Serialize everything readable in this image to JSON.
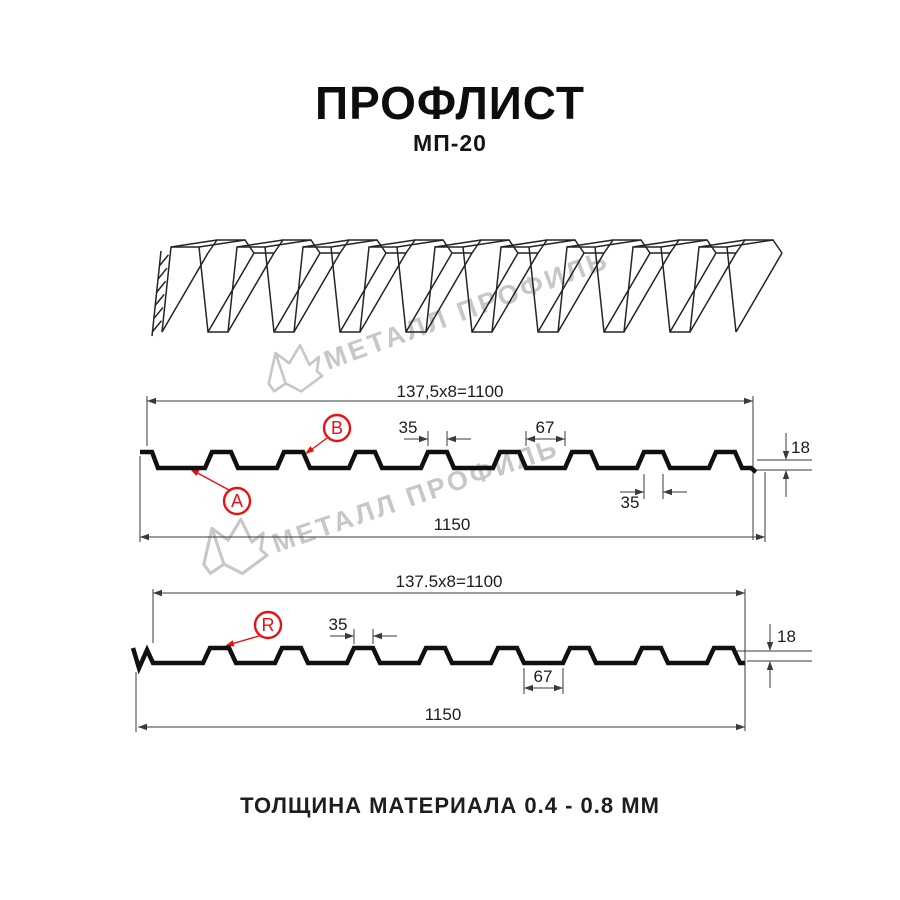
{
  "page": {
    "title": "ПРОФЛИСТ",
    "subtitle": "МП-20",
    "footer": "ТОЛЩИНА МАТЕРИАЛА 0.4 - 0.8 ММ"
  },
  "watermark": {
    "text": "МЕТАЛЛ ПРОФИЛЬ",
    "color": "#c7c7c7"
  },
  "colors": {
    "drawing_line": "#101010",
    "dim_line": "#3a3a3a",
    "accent_red": "#e81111"
  },
  "sections": [
    {
      "name": "section-side-A-B",
      "formula": "137,5x8=1100",
      "width_total": "1150",
      "dim_rib_top": "35",
      "dim_pan": "67",
      "dim_height": "18",
      "dim_rib_bottom": "35",
      "labels": [
        {
          "id": "B"
        },
        {
          "id": "A"
        }
      ]
    },
    {
      "name": "section-side-R",
      "formula": "137.5x8=1100",
      "width_total": "1150",
      "dim_rib_top": "35",
      "dim_pan": "67",
      "dim_height": "18",
      "labels": [
        {
          "id": "R"
        }
      ]
    }
  ]
}
